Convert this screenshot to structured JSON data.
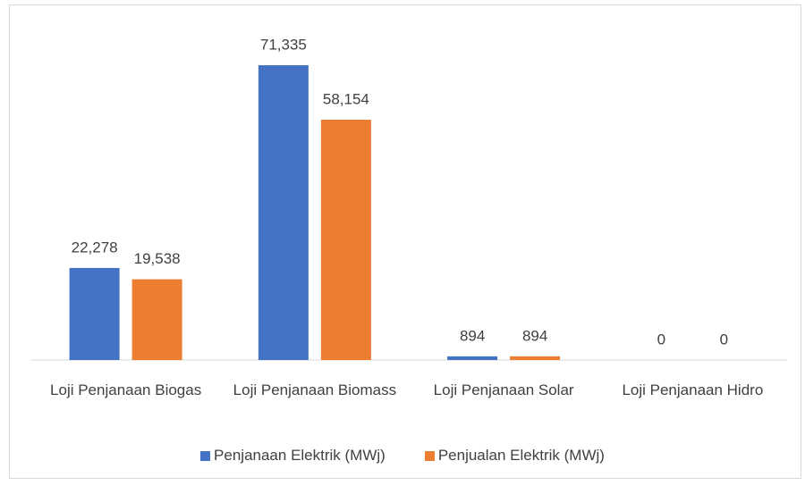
{
  "chart_data": {
    "type": "bar",
    "categories": [
      "Loji Penjanaan Biogas",
      "Loji Penjanaan Biomass",
      "Loji Penjanaan Solar",
      "Loji Penjanaan Hidro"
    ],
    "series": [
      {
        "name": "Penjanaan Elektrik (MWj)",
        "color": "#4472c4",
        "values": [
          22278,
          71335,
          894,
          0
        ],
        "value_labels": [
          "22,278",
          "71,335",
          "894",
          "0"
        ]
      },
      {
        "name": "Penjualan Elektrik (MWj)",
        "color": "#ed7d31",
        "values": [
          19538,
          58154,
          894,
          0
        ],
        "value_labels": [
          "19,538",
          "58,154",
          "894",
          "0"
        ]
      }
    ],
    "legend": "bottom"
  }
}
